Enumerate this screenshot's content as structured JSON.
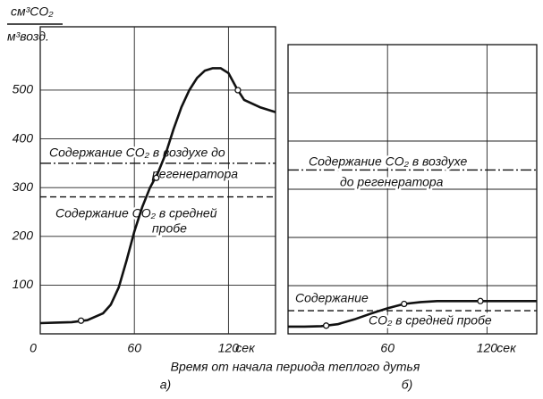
{
  "y_label_top": "см³CO₂",
  "y_label_bottom": "м³возд.",
  "x_label": "Время от начала периода теплого дутья",
  "chart_data": [
    {
      "type": "line",
      "panel_label": "а)",
      "x_unit": "сек",
      "x": [
        0,
        10,
        20,
        30,
        40,
        45,
        50,
        55,
        60,
        65,
        70,
        75,
        80,
        85,
        90,
        95,
        100,
        105,
        110,
        115,
        120,
        125,
        130,
        140,
        150
      ],
      "series": [
        {
          "color": "#111111",
          "values": [
            22,
            23,
            24,
            28,
            42,
            60,
            95,
            150,
            210,
            260,
            300,
            330,
            370,
            420,
            465,
            500,
            525,
            540,
            545,
            545,
            535,
            505,
            480,
            465,
            455
          ]
        }
      ],
      "marked_points": {
        "x": [
          26,
          74,
          126
        ],
        "y": [
          27,
          320,
          500
        ]
      },
      "ref_lines": [
        {
          "y": 350,
          "style": "dashdot"
        },
        {
          "y": 281,
          "style": "dashed"
        }
      ],
      "annotations": [
        "Содержание CO₂ в воздухе до",
        "регенератора",
        "Содержание CO₂ в средней",
        "пробе"
      ],
      "xlim": [
        0,
        150
      ],
      "xticks": [
        0,
        60,
        120
      ],
      "ylim": [
        0,
        630
      ],
      "yticks": [
        100,
        200,
        300,
        400,
        500
      ],
      "ytick_labels": true,
      "grid": true
    },
    {
      "type": "line",
      "panel_label": "б)",
      "x_unit": "сек",
      "x": [
        0,
        10,
        20,
        30,
        40,
        50,
        60,
        70,
        80,
        90,
        100,
        120,
        150
      ],
      "series": [
        {
          "color": "#111111",
          "values": [
            15,
            15,
            16,
            20,
            30,
            42,
            53,
            62,
            66,
            68,
            68,
            68,
            68
          ]
        }
      ],
      "marked_points": {
        "x": [
          23,
          70,
          116
        ],
        "y": [
          17,
          62,
          68
        ]
      },
      "ref_lines": [
        {
          "y": 340,
          "style": "dashdot"
        },
        {
          "y": 48,
          "style": "dashed"
        }
      ],
      "annotations": [
        "Содержание CO₂ в воздухе",
        "до регенератора",
        "Содержание",
        "CO₂ в средней пробе"
      ],
      "xlim": [
        0,
        150
      ],
      "xticks": [
        60,
        120
      ],
      "ylim": [
        0,
        600
      ],
      "yticks": [
        100,
        200,
        300,
        400,
        500
      ],
      "ytick_labels": false,
      "grid": true
    }
  ]
}
